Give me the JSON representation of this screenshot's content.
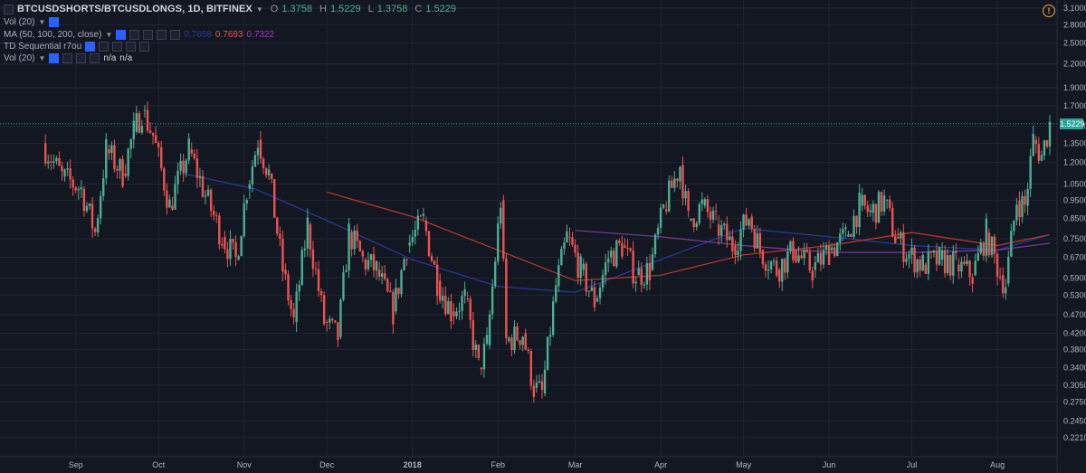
{
  "header": {
    "symbol": "BTCUSDSHORTS/BTCUSDLONGS, 1D, BITFINEX",
    "o_label": "O",
    "o_value": "1.3758",
    "h_label": "H",
    "h_value": "1.5229",
    "l_label": "L",
    "l_value": "1.3758",
    "c_label": "C",
    "c_value": "1.5229"
  },
  "indicators": [
    {
      "label": "Vol (20)"
    },
    {
      "label": "MA (50, 100, 200, close)",
      "v1": "0.7658",
      "v2": "0.7693",
      "v3": "0.7322"
    },
    {
      "label": "TD Sequential r7ou"
    },
    {
      "label": "Vol (20)",
      "v1": "n/a",
      "v2": "n/a"
    }
  ],
  "price_tag": "1.5229",
  "colors": {
    "background": "#131722",
    "up": "#4caf93",
    "down": "#ef5350",
    "ma50": "#2a3a9e",
    "ma100": "#c0392b",
    "ma200": "#7b3aa0",
    "last_price_line": "#26a69a"
  },
  "chart_data": {
    "type": "candlestick",
    "y_scale": "log",
    "ylim": [
      0.21,
      3.1
    ],
    "x_range": [
      "2017-08-17",
      "2018-08-20"
    ],
    "y_ticks": [
      "3.1000",
      "2.8000",
      "2.5000",
      "2.2000",
      "1.9000",
      "1.7000",
      "1.5000",
      "1.3500",
      "1.2000",
      "1.0500",
      "0.9500",
      "0.8500",
      "0.7500",
      "0.6700",
      "0.5900",
      "0.5300",
      "0.4700",
      "0.4200",
      "0.3800",
      "0.3400",
      "0.3050",
      "0.2750",
      "0.2450",
      "0.2210"
    ],
    "x_ticks": [
      {
        "label": "Sep",
        "date": "2017-09-01"
      },
      {
        "label": "Oct",
        "date": "2017-10-01"
      },
      {
        "label": "Nov",
        "date": "2017-11-01"
      },
      {
        "label": "Dec",
        "date": "2017-12-01"
      },
      {
        "label": "2018",
        "date": "2018-01-01"
      },
      {
        "label": "Feb",
        "date": "2018-02-01"
      },
      {
        "label": "Mar",
        "date": "2018-03-01"
      },
      {
        "label": "Apr",
        "date": "2018-04-01"
      },
      {
        "label": "May",
        "date": "2018-05-01"
      },
      {
        "label": "Jun",
        "date": "2018-06-01"
      },
      {
        "label": "Jul",
        "date": "2018-07-01"
      },
      {
        "label": "Aug",
        "date": "2018-08-01"
      }
    ],
    "last_price": 1.5229,
    "closes": [
      {
        "date": "2017-08-20",
        "close": 1.35
      },
      {
        "date": "2017-08-27",
        "close": 1.1
      },
      {
        "date": "2017-09-03",
        "close": 1.02
      },
      {
        "date": "2017-09-08",
        "close": 0.78
      },
      {
        "date": "2017-09-12",
        "close": 1.3
      },
      {
        "date": "2017-09-18",
        "close": 1.12
      },
      {
        "date": "2017-09-22",
        "close": 1.45
      },
      {
        "date": "2017-09-25",
        "close": 1.65
      },
      {
        "date": "2017-09-29",
        "close": 1.42
      },
      {
        "date": "2017-10-05",
        "close": 0.92
      },
      {
        "date": "2017-10-12",
        "close": 1.3
      },
      {
        "date": "2017-10-18",
        "close": 0.98
      },
      {
        "date": "2017-10-24",
        "close": 0.76
      },
      {
        "date": "2017-10-29",
        "close": 0.66
      },
      {
        "date": "2017-11-02",
        "close": 1.02
      },
      {
        "date": "2017-11-06",
        "close": 1.38
      },
      {
        "date": "2017-11-10",
        "close": 1.12
      },
      {
        "date": "2017-11-15",
        "close": 0.62
      },
      {
        "date": "2017-11-19",
        "close": 0.45
      },
      {
        "date": "2017-11-24",
        "close": 0.82
      },
      {
        "date": "2017-11-30",
        "close": 0.45
      },
      {
        "date": "2017-12-05",
        "close": 0.41
      },
      {
        "date": "2017-12-09",
        "close": 0.78
      },
      {
        "date": "2017-12-14",
        "close": 0.66
      },
      {
        "date": "2017-12-19",
        "close": 0.62
      },
      {
        "date": "2017-12-25",
        "close": 0.48
      },
      {
        "date": "2017-12-30",
        "close": 0.72
      },
      {
        "date": "2018-01-05",
        "close": 0.84
      },
      {
        "date": "2018-01-10",
        "close": 0.58
      },
      {
        "date": "2018-01-15",
        "close": 0.48
      },
      {
        "date": "2018-01-20",
        "close": 0.52
      },
      {
        "date": "2018-01-25",
        "close": 0.34
      },
      {
        "date": "2018-01-28",
        "close": 0.39
      },
      {
        "date": "2018-02-02",
        "close": 0.95
      },
      {
        "date": "2018-02-04",
        "close": 0.4
      },
      {
        "date": "2018-02-10",
        "close": 0.42
      },
      {
        "date": "2018-02-14",
        "close": 0.3
      },
      {
        "date": "2018-02-17",
        "close": 0.29
      },
      {
        "date": "2018-02-22",
        "close": 0.56
      },
      {
        "date": "2018-02-26",
        "close": 0.76
      },
      {
        "date": "2018-03-03",
        "close": 0.62
      },
      {
        "date": "2018-03-08",
        "close": 0.51
      },
      {
        "date": "2018-03-13",
        "close": 0.67
      },
      {
        "date": "2018-03-18",
        "close": 0.72
      },
      {
        "date": "2018-03-23",
        "close": 0.6
      },
      {
        "date": "2018-03-28",
        "close": 0.62
      },
      {
        "date": "2018-04-02",
        "close": 0.9
      },
      {
        "date": "2018-04-08",
        "close": 1.18
      },
      {
        "date": "2018-04-11",
        "close": 0.84
      },
      {
        "date": "2018-04-16",
        "close": 0.92
      },
      {
        "date": "2018-04-21",
        "close": 0.82
      },
      {
        "date": "2018-04-27",
        "close": 0.72
      },
      {
        "date": "2018-05-03",
        "close": 0.86
      },
      {
        "date": "2018-05-07",
        "close": 0.7
      },
      {
        "date": "2018-05-13",
        "close": 0.62
      },
      {
        "date": "2018-05-19",
        "close": 0.7
      },
      {
        "date": "2018-05-26",
        "close": 0.62
      },
      {
        "date": "2018-06-01",
        "close": 0.7
      },
      {
        "date": "2018-06-07",
        "close": 0.76
      },
      {
        "date": "2018-06-12",
        "close": 0.92
      },
      {
        "date": "2018-06-16",
        "close": 0.88
      },
      {
        "date": "2018-06-21",
        "close": 0.95
      },
      {
        "date": "2018-06-25",
        "close": 0.76
      },
      {
        "date": "2018-06-30",
        "close": 0.68
      },
      {
        "date": "2018-07-05",
        "close": 0.64
      },
      {
        "date": "2018-07-11",
        "close": 0.66
      },
      {
        "date": "2018-07-17",
        "close": 0.64
      },
      {
        "date": "2018-07-23",
        "close": 0.6
      },
      {
        "date": "2018-07-28",
        "close": 0.78
      },
      {
        "date": "2018-08-02",
        "close": 0.6
      },
      {
        "date": "2018-08-04",
        "close": 0.57
      },
      {
        "date": "2018-08-08",
        "close": 0.95
      },
      {
        "date": "2018-08-11",
        "close": 0.92
      },
      {
        "date": "2018-08-14",
        "close": 1.38
      },
      {
        "date": "2018-08-17",
        "close": 1.25
      },
      {
        "date": "2018-08-20",
        "close": 1.5229
      }
    ],
    "ma50": [
      {
        "date": "2017-10-10",
        "value": 1.12
      },
      {
        "date": "2017-11-05",
        "value": 1.02
      },
      {
        "date": "2017-12-01",
        "value": 0.84
      },
      {
        "date": "2018-01-01",
        "value": 0.66
      },
      {
        "date": "2018-02-01",
        "value": 0.56
      },
      {
        "date": "2018-03-01",
        "value": 0.54
      },
      {
        "date": "2018-04-01",
        "value": 0.66
      },
      {
        "date": "2018-05-01",
        "value": 0.8
      },
      {
        "date": "2018-06-01",
        "value": 0.76
      },
      {
        "date": "2018-07-01",
        "value": 0.72
      },
      {
        "date": "2018-08-01",
        "value": 0.7
      },
      {
        "date": "2018-08-20",
        "value": 0.77
      }
    ],
    "ma100": [
      {
        "date": "2017-12-01",
        "value": 1.0
      },
      {
        "date": "2018-01-01",
        "value": 0.86
      },
      {
        "date": "2018-02-01",
        "value": 0.7
      },
      {
        "date": "2018-03-01",
        "value": 0.58
      },
      {
        "date": "2018-04-01",
        "value": 0.6
      },
      {
        "date": "2018-05-01",
        "value": 0.68
      },
      {
        "date": "2018-06-01",
        "value": 0.72
      },
      {
        "date": "2018-07-01",
        "value": 0.78
      },
      {
        "date": "2018-08-01",
        "value": 0.72
      },
      {
        "date": "2018-08-20",
        "value": 0.77
      }
    ],
    "ma200": [
      {
        "date": "2018-03-01",
        "value": 0.79
      },
      {
        "date": "2018-04-01",
        "value": 0.76
      },
      {
        "date": "2018-05-01",
        "value": 0.72
      },
      {
        "date": "2018-06-01",
        "value": 0.69
      },
      {
        "date": "2018-07-01",
        "value": 0.69
      },
      {
        "date": "2018-08-01",
        "value": 0.7
      },
      {
        "date": "2018-08-20",
        "value": 0.73
      }
    ]
  }
}
